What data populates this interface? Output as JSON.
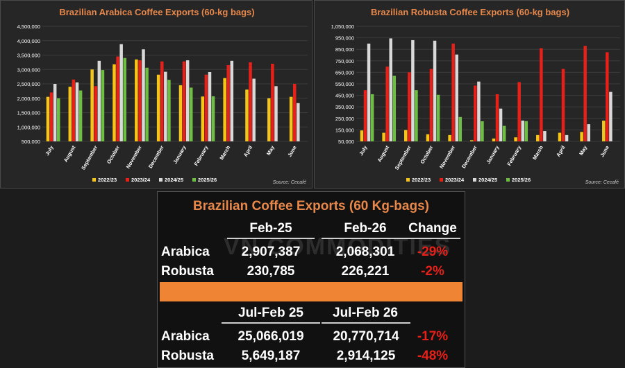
{
  "chart_data": [
    {
      "type": "bar",
      "title": "Brazilian Arabica Coffee Exports (60-kg bags)",
      "categories": [
        "July",
        "August",
        "September",
        "October",
        "November",
        "December",
        "January",
        "February",
        "March",
        "April",
        "May",
        "June"
      ],
      "series": [
        {
          "name": "2022/23",
          "color": "#f5c518",
          "values": [
            2050000,
            2400000,
            3000000,
            3180000,
            3350000,
            2820000,
            2450000,
            2060000,
            2700000,
            2300000,
            2000000,
            2050000
          ]
        },
        {
          "name": "2023/24",
          "color": "#e8201a",
          "values": [
            2200000,
            2650000,
            2420000,
            3450000,
            3320000,
            3280000,
            3280000,
            2820000,
            3150000,
            3250000,
            3200000,
            2500000
          ]
        },
        {
          "name": "2024/25",
          "color": "#d9d9d9",
          "values": [
            2500000,
            2550000,
            3300000,
            3880000,
            3700000,
            2920000,
            3320000,
            2910000,
            3300000,
            2680000,
            2420000,
            1830000
          ]
        },
        {
          "name": "2025/26",
          "color": "#6fbe44",
          "values": [
            2000000,
            2270000,
            2980000,
            3400000,
            3060000,
            2640000,
            2370000,
            2068000,
            null,
            null,
            null,
            null
          ]
        }
      ],
      "yticks": [
        "500,000",
        "1,000,000",
        "1,500,000",
        "2,000,000",
        "2,500,000",
        "3,000,000",
        "3,500,000",
        "4,000,000",
        "4,500,000"
      ],
      "ylim": [
        500000,
        4500000
      ],
      "source": "Source: Cecafé",
      "legend": "bottom"
    },
    {
      "type": "bar",
      "title": "Brazilian Robusta Coffee Exports (60-kg bags)",
      "categories": [
        "July",
        "August",
        "September",
        "October",
        "November",
        "December",
        "January",
        "February",
        "March",
        "April",
        "May",
        "June"
      ],
      "series": [
        {
          "name": "2022/23",
          "color": "#f5c518",
          "values": [
            145000,
            125000,
            148000,
            112000,
            105000,
            60000,
            75000,
            85000,
            105000,
            125000,
            132000,
            230000
          ]
        },
        {
          "name": "2023/24",
          "color": "#e8201a",
          "values": [
            495000,
            700000,
            650000,
            680000,
            900000,
            535000,
            460000,
            565000,
            860000,
            680000,
            880000,
            825000
          ]
        },
        {
          "name": "2024/25",
          "color": "#d9d9d9",
          "values": [
            900000,
            945000,
            930000,
            925000,
            805000,
            570000,
            335000,
            230785,
            140000,
            105000,
            200000,
            480000
          ]
        },
        {
          "name": "2025/26",
          "color": "#6fbe44",
          "values": [
            460000,
            620000,
            495000,
            455000,
            262000,
            225000,
            185000,
            226221,
            null,
            null,
            null,
            null
          ]
        }
      ],
      "yticks": [
        "50,000",
        "150,000",
        "250,000",
        "350,000",
        "450,000",
        "550,000",
        "650,000",
        "750,000",
        "850,000",
        "950,000",
        "1,050,000"
      ],
      "ylim": [
        50000,
        1050000
      ],
      "source": "Source: Cecafé",
      "legend": "bottom"
    }
  ],
  "summary": {
    "title": "Brazilian Coffee Exports (60 Kg-bags)",
    "watermark": "VN COMMODITIES",
    "monthly": {
      "headers": [
        "Feb-25",
        "Feb-26",
        "Change"
      ],
      "rows": [
        {
          "label": "Arabica",
          "a": "2,907,387",
          "b": "2,068,301",
          "change": "-29%"
        },
        {
          "label": "Robusta",
          "a": "230,785",
          "b": "226,221",
          "change": "-2%"
        }
      ]
    },
    "ytd": {
      "headers": [
        "Jul-Feb 25",
        "Jul-Feb 26"
      ],
      "rows": [
        {
          "label": "Arabica",
          "a": "25,066,019",
          "b": "20,770,714",
          "change": "-17%"
        },
        {
          "label": "Robusta",
          "a": "5,649,187",
          "b": "2,914,125",
          "change": "-48%"
        }
      ]
    }
  }
}
